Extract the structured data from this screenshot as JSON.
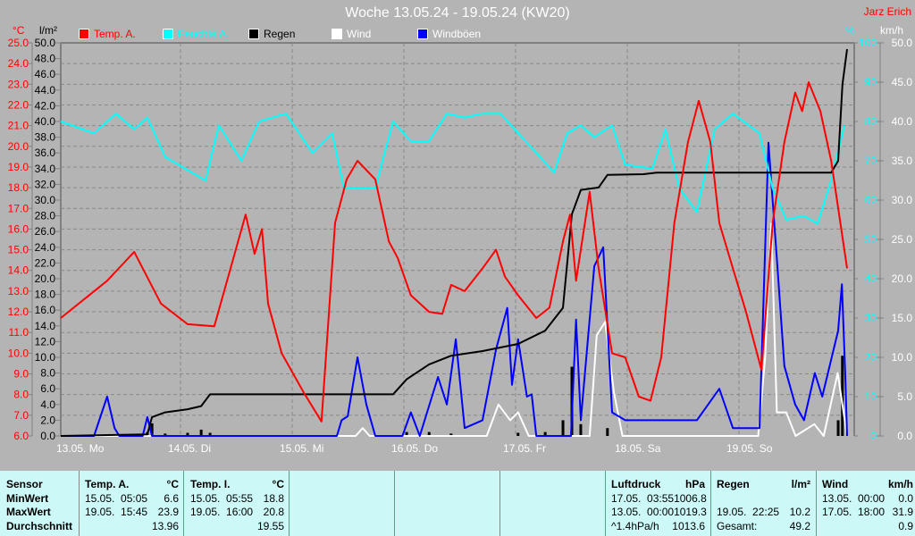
{
  "title": "Woche 13.05.24 - 19.05.24 (KW20)",
  "author": "Jarz Erich",
  "legend": [
    {
      "label": "Temp. A.",
      "color": "#ff0000"
    },
    {
      "label": "Feuchte A.",
      "color": "#00ffff"
    },
    {
      "label": "Regen",
      "color": "#000000"
    },
    {
      "label": "Wind",
      "color": "#ffffff"
    },
    {
      "label": "Windböen",
      "color": "#0000ff"
    }
  ],
  "axes": {
    "temp_unit": "°C",
    "rain_unit": "l/m²",
    "hum_unit": "%",
    "wind_unit": "km/h",
    "temp_range": [
      6,
      25
    ],
    "rain_range": [
      0,
      50
    ],
    "hum_range": [
      0,
      100
    ],
    "wind_range": [
      0,
      50
    ]
  },
  "chart_data": {
    "type": "line",
    "title": "Woche 13.05.24 - 19.05.24 (KW20)",
    "x_unit": "hours since 13.05. 00:00",
    "xlim": [
      0,
      168
    ],
    "x_tick_labels": [
      "13.05. Mo",
      "14.05. Di",
      "15.05. Mi",
      "16.05. Do",
      "17.05. Fr",
      "18.05. Sa",
      "19.05. So"
    ],
    "series": [
      {
        "name": "Temp. A.",
        "axis": "temp",
        "color": "#ff0000",
        "points": [
          [
            0,
            11.7
          ],
          [
            9.9,
            13.5
          ],
          [
            15.7,
            14.9
          ],
          [
            21.4,
            12.4
          ],
          [
            27.1,
            11.4
          ],
          [
            32.8,
            11.3
          ],
          [
            39.5,
            16.7
          ],
          [
            41.4,
            14.8
          ],
          [
            43,
            16
          ],
          [
            44.3,
            12.4
          ],
          [
            47.2,
            10
          ],
          [
            51.9,
            8.1
          ],
          [
            55.7,
            6.7
          ],
          [
            58.6,
            16.3
          ],
          [
            61.1,
            18.4
          ],
          [
            63.4,
            19.3
          ],
          [
            67.2,
            18.4
          ],
          [
            70.1,
            15.4
          ],
          [
            72,
            14.6
          ],
          [
            74.8,
            12.8
          ],
          [
            78.7,
            12
          ],
          [
            81.5,
            11.9
          ],
          [
            83.4,
            13.3
          ],
          [
            86.3,
            13
          ],
          [
            90.1,
            14.1
          ],
          [
            93,
            15
          ],
          [
            94.9,
            13.7
          ],
          [
            97.7,
            12.8
          ],
          [
            101.6,
            11.7
          ],
          [
            104.4,
            12.2
          ],
          [
            107.3,
            15.4
          ],
          [
            108.8,
            16.7
          ],
          [
            110.1,
            13.5
          ],
          [
            113,
            17.8
          ],
          [
            114.9,
            14.1
          ],
          [
            117.8,
            10
          ],
          [
            120.6,
            9.8
          ],
          [
            123.5,
            7.9
          ],
          [
            126,
            7.7
          ],
          [
            128.3,
            9.8
          ],
          [
            131.1,
            16.3
          ],
          [
            134,
            20.2
          ],
          [
            136.3,
            22.2
          ],
          [
            138.8,
            20.2
          ],
          [
            140.7,
            16.3
          ],
          [
            143.6,
            14.1
          ],
          [
            146.4,
            12
          ],
          [
            149.7,
            9.2
          ],
          [
            152.1,
            16.3
          ],
          [
            154.6,
            20.2
          ],
          [
            156.9,
            22.6
          ],
          [
            158.4,
            21.7
          ],
          [
            159.8,
            23.1
          ],
          [
            162.3,
            21.7
          ],
          [
            164.6,
            19.3
          ],
          [
            168,
            14.1
          ]
        ]
      },
      {
        "name": "Feuchte A.",
        "axis": "hum",
        "color": "#00ffff",
        "points": [
          [
            0,
            80
          ],
          [
            7.1,
            77
          ],
          [
            11.8,
            82
          ],
          [
            15.7,
            78
          ],
          [
            18.5,
            81
          ],
          [
            22.3,
            71
          ],
          [
            30.9,
            65
          ],
          [
            33.8,
            79
          ],
          [
            38.6,
            70
          ],
          [
            42.4,
            80
          ],
          [
            48.1,
            82
          ],
          [
            53.8,
            72
          ],
          [
            58,
            77
          ],
          [
            60.5,
            63
          ],
          [
            67.2,
            63
          ],
          [
            71,
            80
          ],
          [
            74.8,
            75
          ],
          [
            78.7,
            75
          ],
          [
            82.5,
            82
          ],
          [
            86.3,
            81
          ],
          [
            90.1,
            82
          ],
          [
            93.9,
            82
          ],
          [
            101.6,
            72
          ],
          [
            105.4,
            67
          ],
          [
            108.2,
            77
          ],
          [
            111.1,
            79
          ],
          [
            114,
            76
          ],
          [
            117.8,
            79
          ],
          [
            120.6,
            69
          ],
          [
            126.4,
            68
          ],
          [
            129.2,
            78
          ],
          [
            132.1,
            63
          ],
          [
            135.9,
            57
          ],
          [
            139.7,
            78
          ],
          [
            143.6,
            82
          ],
          [
            149.3,
            77
          ],
          [
            152.1,
            63
          ],
          [
            155,
            55
          ],
          [
            158.8,
            56
          ],
          [
            161.7,
            54
          ],
          [
            164.6,
            65
          ],
          [
            167.4,
            79
          ]
        ]
      },
      {
        "name": "Regen",
        "axis": "rain",
        "color": "#000000",
        "points": [
          [
            0,
            0
          ],
          [
            18.5,
            0.2
          ],
          [
            19.5,
            2.4
          ],
          [
            22.3,
            3
          ],
          [
            27.1,
            3.4
          ],
          [
            30,
            3.8
          ],
          [
            31.9,
            5.3
          ],
          [
            71,
            5.3
          ],
          [
            73.9,
            7.2
          ],
          [
            78.7,
            9.1
          ],
          [
            83.4,
            10.2
          ],
          [
            90.1,
            10.8
          ],
          [
            97.7,
            11.7
          ],
          [
            103.5,
            13.4
          ],
          [
            107.3,
            16.3
          ],
          [
            109.2,
            28.2
          ],
          [
            111.1,
            31.3
          ],
          [
            114.9,
            31.6
          ],
          [
            116.8,
            33.2
          ],
          [
            124.5,
            33.3
          ],
          [
            127.3,
            33.5
          ],
          [
            164.6,
            33.5
          ],
          [
            166.1,
            35
          ],
          [
            167,
            44.7
          ],
          [
            168,
            49.2
          ]
        ]
      },
      {
        "name": "Wind",
        "axis": "wind",
        "color": "#ffffff",
        "points": [
          [
            0,
            0
          ],
          [
            63,
            0
          ],
          [
            64.5,
            1
          ],
          [
            66,
            0
          ],
          [
            91,
            0
          ],
          [
            93.5,
            4
          ],
          [
            96,
            2
          ],
          [
            97.7,
            3
          ],
          [
            100,
            0
          ],
          [
            113,
            0
          ],
          [
            114.5,
            12.8
          ],
          [
            116.3,
            14.5
          ],
          [
            118.2,
            5.5
          ],
          [
            120,
            0
          ],
          [
            149,
            0
          ],
          [
            150.5,
            10
          ],
          [
            151.8,
            27
          ],
          [
            153,
            3
          ],
          [
            155,
            3
          ],
          [
            157,
            0
          ],
          [
            161,
            1.5
          ],
          [
            163,
            0
          ],
          [
            166,
            8
          ],
          [
            168,
            0
          ]
        ]
      },
      {
        "name": "Windböen",
        "axis": "wind",
        "color": "#0000ff",
        "points": [
          [
            0,
            0
          ],
          [
            7.1,
            0
          ],
          [
            9.9,
            5
          ],
          [
            11.5,
            1
          ],
          [
            12.5,
            0
          ],
          [
            17.5,
            0
          ],
          [
            18.5,
            2.4
          ],
          [
            19.5,
            0
          ],
          [
            59,
            0
          ],
          [
            60,
            2
          ],
          [
            61.3,
            2.5
          ],
          [
            63.4,
            10
          ],
          [
            65.3,
            4
          ],
          [
            67.2,
            0
          ],
          [
            73,
            0
          ],
          [
            74.8,
            3
          ],
          [
            76.7,
            0
          ],
          [
            80.6,
            7.5
          ],
          [
            82.5,
            4
          ],
          [
            84.4,
            12.3
          ],
          [
            86.3,
            1
          ],
          [
            90.1,
            2
          ],
          [
            93,
            11
          ],
          [
            95.4,
            16.3
          ],
          [
            96.4,
            6.5
          ],
          [
            97.7,
            12.3
          ],
          [
            99.6,
            5
          ],
          [
            100.6,
            5.3
          ],
          [
            101.6,
            0
          ],
          [
            109,
            0
          ],
          [
            110.1,
            14.8
          ],
          [
            111.1,
            2
          ],
          [
            114,
            21.6
          ],
          [
            115.9,
            24
          ],
          [
            117.8,
            3
          ],
          [
            120.6,
            2
          ],
          [
            133,
            2
          ],
          [
            135.9,
            2
          ],
          [
            140.7,
            6
          ],
          [
            143.6,
            1
          ],
          [
            149.3,
            1
          ],
          [
            151.2,
            37.3
          ],
          [
            153.1,
            21.6
          ],
          [
            154.6,
            8.9
          ],
          [
            156.9,
            4
          ],
          [
            158.8,
            2
          ],
          [
            161.1,
            8
          ],
          [
            162.7,
            5
          ],
          [
            166.1,
            13.4
          ],
          [
            166.9,
            19.3
          ],
          [
            167.6,
            8
          ],
          [
            168,
            0
          ]
        ]
      }
    ],
    "rain_bars": {
      "name": "Regen",
      "axis": "rain",
      "color": "#000000",
      "points": [
        [
          18.5,
          0.5
        ],
        [
          19.5,
          1.6
        ],
        [
          22.3,
          0.3
        ],
        [
          27.1,
          0.4
        ],
        [
          30,
          0.8
        ],
        [
          31.9,
          0.4
        ],
        [
          73.9,
          0.5
        ],
        [
          78.7,
          0.5
        ],
        [
          83.4,
          0.3
        ],
        [
          97.7,
          0.4
        ],
        [
          103.5,
          0.5
        ],
        [
          107.3,
          2
        ],
        [
          109.2,
          8.8
        ],
        [
          111.1,
          1.5
        ],
        [
          116.8,
          1
        ],
        [
          166.1,
          2
        ],
        [
          167,
          10.2
        ]
      ]
    }
  },
  "table": {
    "sensor": {
      "header": "Sensor",
      "rows": [
        "MinWert",
        "MaxWert",
        "Durchschnitt"
      ]
    },
    "temp_a": {
      "header": "Temp. A.",
      "unit": "°C",
      "rows": [
        [
          "15.05.  05:05",
          "6.6"
        ],
        [
          "19.05.  15:45",
          "23.9"
        ],
        [
          "",
          "13.96"
        ]
      ]
    },
    "temp_i": {
      "header": "Temp. I.",
      "unit": "°C",
      "rows": [
        [
          "15.05.  05:55",
          "18.8"
        ],
        [
          "19.05.  16:00",
          "20.8"
        ],
        [
          "",
          "19.55"
        ]
      ]
    },
    "pressure": {
      "header": "Luftdruck",
      "unit": "hPa",
      "rows": [
        [
          "17.05.  03:55",
          "1006.8"
        ],
        [
          "13.05.  00:00",
          "1019.3"
        ],
        [
          "^1.4hPa/h",
          "1013.6"
        ]
      ]
    },
    "rain": {
      "header": "Regen",
      "unit": "l/m²",
      "rows": [
        [
          "",
          ""
        ],
        [
          "19.05.  22:25",
          "10.2"
        ],
        [
          "Gesamt:",
          "49.2"
        ]
      ]
    },
    "wind": {
      "header": "Wind",
      "unit": "km/h",
      "rows": [
        [
          "13.05.  00:00",
          "0.0"
        ],
        [
          "17.05.  18:00",
          "31.9"
        ],
        [
          "",
          "0.9"
        ]
      ]
    }
  }
}
